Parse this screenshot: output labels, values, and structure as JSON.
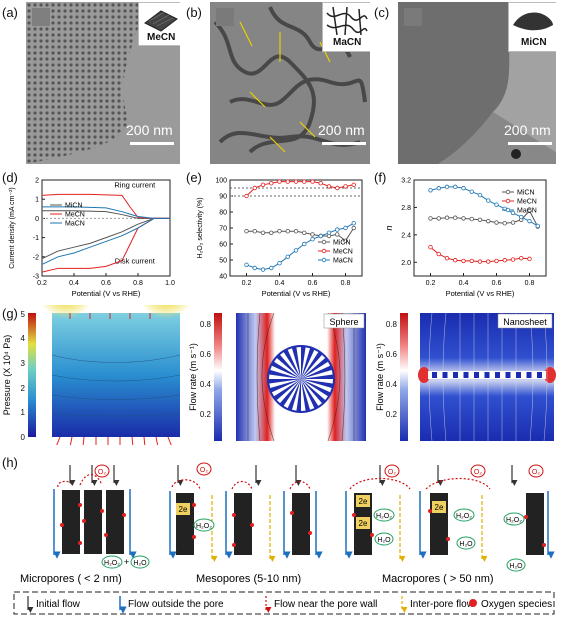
{
  "panel_labels": {
    "a": "(a)",
    "b": "(b)",
    "c": "(c)",
    "d": "(d)",
    "e": "(e)",
    "f": "(f)",
    "g": "(g)",
    "h": "(h)"
  },
  "tem": {
    "a": {
      "scale": "200 nm",
      "inset": "MeCN"
    },
    "b": {
      "scale": "200 nm",
      "inset": "MaCN"
    },
    "c": {
      "scale": "200 nm",
      "inset": "MiCN"
    }
  },
  "chart_data": [
    {
      "panel": "d",
      "type": "line",
      "xlabel": "Potential (V vs RHE)",
      "ylabel": "Current density (mA cm⁻²)",
      "xlim": [
        0.2,
        1.0
      ],
      "ylim": [
        -3,
        2
      ],
      "xticks": [
        "0.2",
        "0.4",
        "0.6",
        "0.8",
        "1.0"
      ],
      "yticks": [
        "-3",
        "-2",
        "-1",
        "0",
        "1",
        "2"
      ],
      "annotations": [
        "Ring current",
        "Disk current"
      ],
      "legend": [
        "MiCN",
        "MeCN",
        "MaCN"
      ],
      "series": [
        {
          "name": "MiCN",
          "color": "#555555",
          "x": [
            0.2,
            0.3,
            0.4,
            0.5,
            0.6,
            0.7,
            0.8,
            0.9,
            1.0
          ],
          "y": [
            -2.1,
            -1.7,
            -1.5,
            -1.3,
            -1.0,
            -0.7,
            -0.3,
            0,
            0
          ]
        },
        {
          "name": "MeCN",
          "color": "#e32020",
          "x": [
            0.2,
            0.3,
            0.4,
            0.5,
            0.6,
            0.7,
            0.8,
            0.9,
            1.0
          ],
          "y": [
            -2.8,
            -2.6,
            -2.6,
            -2.6,
            -2.5,
            -2.2,
            -0.5,
            0,
            0
          ]
        },
        {
          "name": "MaCN",
          "color": "#1f77b4",
          "x": [
            0.2,
            0.3,
            0.4,
            0.5,
            0.6,
            0.7,
            0.8,
            0.9,
            1.0
          ],
          "y": [
            -2.4,
            -2.0,
            -1.8,
            -1.5,
            -1.2,
            -0.9,
            -0.5,
            0,
            0
          ]
        },
        {
          "name": "MiCN ring",
          "color": "#555555",
          "x": [
            0.2,
            0.4,
            0.6,
            0.7,
            0.8,
            0.9,
            1.0
          ],
          "y": [
            0.4,
            0.4,
            0.35,
            0.2,
            0.0,
            0,
            0
          ]
        },
        {
          "name": "MeCN ring",
          "color": "#e32020",
          "x": [
            0.2,
            0.3,
            0.5,
            0.7,
            0.75,
            0.8,
            0.9,
            1.0
          ],
          "y": [
            1.2,
            1.25,
            1.25,
            1.2,
            0.6,
            0.05,
            0,
            0
          ]
        },
        {
          "name": "MaCN ring",
          "color": "#1f77b4",
          "x": [
            0.2,
            0.4,
            0.6,
            0.7,
            0.8,
            0.9,
            1.0
          ],
          "y": [
            0.6,
            0.6,
            0.55,
            0.35,
            0.1,
            0,
            0
          ]
        }
      ]
    },
    {
      "panel": "e",
      "type": "line",
      "xlabel": "Potential (V vs RHE)",
      "ylabel": "H₂O₂ selectivity (%)",
      "xlim": [
        0.1,
        0.9
      ],
      "ylim": [
        40,
        100
      ],
      "xticks": [
        "0.2",
        "0.4",
        "0.6",
        "0.8"
      ],
      "yticks": [
        "40",
        "50",
        "60",
        "70",
        "80",
        "90",
        "100"
      ],
      "legend": [
        "MiCN",
        "MeCN",
        "MaCN"
      ],
      "series": [
        {
          "name": "MiCN",
          "color": "#555555",
          "x": [
            0.2,
            0.25,
            0.3,
            0.35,
            0.4,
            0.45,
            0.5,
            0.55,
            0.6,
            0.65,
            0.7,
            0.75,
            0.8,
            0.85
          ],
          "y": [
            68,
            68,
            67,
            67,
            68,
            68,
            68,
            67,
            66,
            65,
            65,
            66,
            62,
            70
          ]
        },
        {
          "name": "MeCN",
          "color": "#e32020",
          "x": [
            0.2,
            0.25,
            0.3,
            0.35,
            0.4,
            0.45,
            0.5,
            0.55,
            0.6,
            0.65,
            0.7,
            0.75,
            0.8,
            0.85
          ],
          "y": [
            90,
            95,
            97,
            98,
            99,
            99,
            99,
            99,
            99,
            98,
            96,
            95,
            96,
            97
          ]
        },
        {
          "name": "MaCN",
          "color": "#1f77b4",
          "x": [
            0.2,
            0.25,
            0.3,
            0.35,
            0.4,
            0.45,
            0.5,
            0.55,
            0.6,
            0.65,
            0.7,
            0.75,
            0.8,
            0.85
          ],
          "y": [
            47,
            45,
            44,
            45,
            48,
            52,
            56,
            60,
            63,
            65,
            67,
            69,
            70,
            73
          ]
        }
      ]
    },
    {
      "panel": "f",
      "type": "line",
      "xlabel": "Potential (V vs RHE)",
      "ylabel": "n",
      "xlim": [
        0.1,
        0.9
      ],
      "ylim": [
        1.8,
        3.2
      ],
      "xticks": [
        "0.2",
        "0.4",
        "0.6",
        "0.8"
      ],
      "yticks": [
        "2.0",
        "2.4",
        "2.8",
        "3.2"
      ],
      "legend": [
        "MiCN",
        "MeCN",
        "MaCN"
      ],
      "series": [
        {
          "name": "MiCN",
          "color": "#555555",
          "x": [
            0.2,
            0.25,
            0.3,
            0.35,
            0.4,
            0.45,
            0.5,
            0.55,
            0.6,
            0.65,
            0.7,
            0.75,
            0.8,
            0.85
          ],
          "y": [
            2.64,
            2.64,
            2.65,
            2.65,
            2.64,
            2.63,
            2.62,
            2.6,
            2.58,
            2.57,
            2.58,
            2.62,
            2.75,
            2.52
          ]
        },
        {
          "name": "MeCN",
          "color": "#e32020",
          "x": [
            0.2,
            0.25,
            0.3,
            0.35,
            0.4,
            0.45,
            0.5,
            0.55,
            0.6,
            0.65,
            0.7,
            0.75,
            0.8
          ],
          "y": [
            2.22,
            2.12,
            2.06,
            2.03,
            2.02,
            2.02,
            2.01,
            2.01,
            2.02,
            2.03,
            2.04,
            2.06,
            2.05
          ]
        },
        {
          "name": "MaCN",
          "color": "#1f77b4",
          "x": [
            0.2,
            0.25,
            0.3,
            0.35,
            0.4,
            0.45,
            0.5,
            0.55,
            0.6,
            0.65,
            0.7,
            0.75,
            0.8,
            0.85
          ],
          "y": [
            3.05,
            3.08,
            3.1,
            3.1,
            3.08,
            3.03,
            2.98,
            2.9,
            2.84,
            2.78,
            2.72,
            2.66,
            2.6,
            2.53
          ]
        }
      ]
    }
  ],
  "sim": {
    "pressure": {
      "ylabel": "Pressure (X 10⁴ Pa)",
      "ticks": [
        "0",
        "1",
        "2",
        "3",
        "4",
        "5"
      ]
    },
    "sphere": {
      "ylabel": "Flow rate (m s⁻¹)",
      "ticks": [
        "0.2",
        "0.4",
        "0.6",
        "0.8"
      ],
      "label": "Sphere"
    },
    "nanosheet": {
      "ylabel": "Flow rate (m s⁻¹)",
      "ticks": [
        "0.2",
        "0.4",
        "0.6",
        "0.8"
      ],
      "label": "Nanosheet"
    }
  },
  "schematic": {
    "groups": [
      "Micropores ( < 2 nm)",
      "Mesopores (5-10 nm)",
      "Macropores ( > 50 nm)"
    ],
    "legend": [
      "Initial flow",
      "Flow outside the pore",
      "Flow near the pore wall",
      "Inter-pore flow",
      "Oxygen species"
    ],
    "species": {
      "o2": "O₂",
      "h2o2": "H₂O₂",
      "h2o": "H₂O",
      "e2": "2e",
      "plus": "+"
    }
  }
}
